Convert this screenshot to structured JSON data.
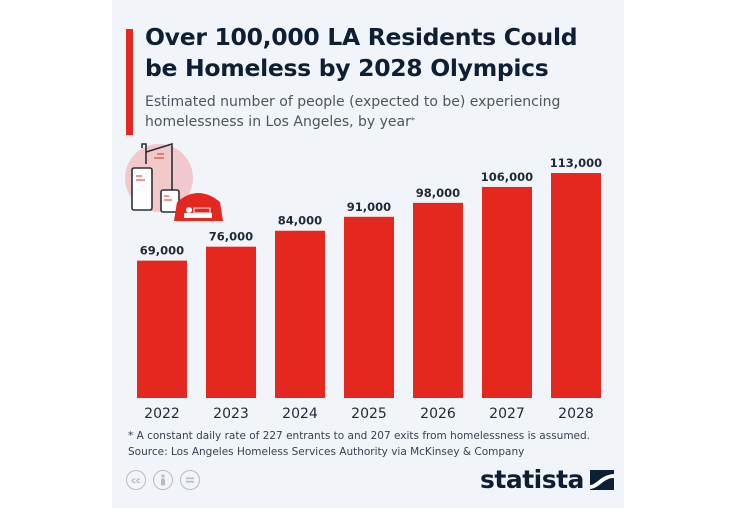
{
  "header": {
    "title": "Over 100,000 LA Residents Could be Homeless by 2028 Olympics",
    "subtitle": "Estimated number of people (expected to be) experiencing homelessness in Los Angeles, by year",
    "subtitle_marker": "*"
  },
  "colors": {
    "bar": "#e5281f",
    "accent": "#e5281f",
    "text_dark": "#0f1f33",
    "background": "#f1f5f9"
  },
  "icons": [
    "city-buildings-tent-icon",
    "cc-license-icon",
    "attribution-icon",
    "no-derivatives-icon",
    "statista-logo-icon"
  ],
  "chart_data": {
    "type": "bar",
    "title": "Over 100,000 LA Residents Could be Homeless by 2028 Olympics",
    "subtitle": "Estimated number of people (expected to be) experiencing homelessness in Los Angeles, by year*",
    "xlabel": "",
    "ylabel": "",
    "categories": [
      "2022",
      "2023",
      "2024",
      "2025",
      "2026",
      "2027",
      "2028"
    ],
    "values": [
      69000,
      76000,
      84000,
      91000,
      98000,
      106000,
      113000
    ],
    "value_labels": [
      "69,000",
      "76,000",
      "84,000",
      "91,000",
      "98,000",
      "106,000",
      "113,000"
    ],
    "ylim": [
      0,
      113000
    ],
    "grid": false,
    "legend": "none"
  },
  "footer": {
    "footnote": "* A constant daily rate of 227 entrants to and 207 exits from homelessness is assumed.",
    "source": "Source: Los Angeles Homeless Services Authority via McKinsey & Company",
    "cc_label": "cc",
    "brand": "statista"
  }
}
